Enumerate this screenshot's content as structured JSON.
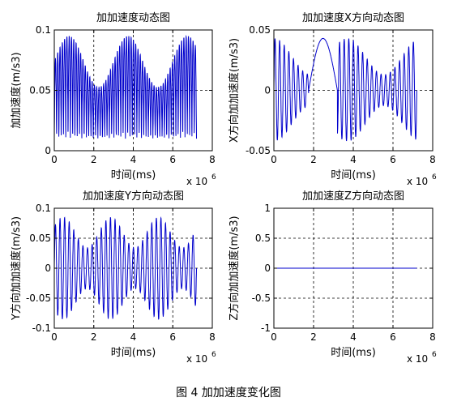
{
  "figure_caption": "图 4  加加速度变化图",
  "chart_data": [
    {
      "type": "line",
      "title": "加加速度动态图",
      "xlabel": "时间(ms)",
      "ylabel": "加加速度(m/s3)",
      "x_multiplier": "x 10",
      "x_multiplier_exp": "6",
      "xlim": [
        0,
        8
      ],
      "ylim": [
        0,
        0.1
      ],
      "xticks": [
        "0",
        "2",
        "4",
        "6",
        "8"
      ],
      "yticks": [
        "0",
        "0.05",
        "0.1"
      ],
      "grid": true,
      "pattern": "magnitude",
      "x_end": 7.2,
      "cycles": 31,
      "peak": 0.095,
      "trough": 0.01,
      "color": "#0000cc"
    },
    {
      "type": "line",
      "title": "加加速度X方向动态图",
      "xlabel": "时间(ms)",
      "ylabel": "X方向加加速度(m/s3)",
      "x_multiplier": "x 10",
      "x_multiplier_exp": "6",
      "xlim": [
        0,
        8
      ],
      "ylim": [
        -0.05,
        0.05
      ],
      "xticks": [
        "0",
        "2",
        "4",
        "6",
        "8"
      ],
      "yticks": [
        "-0.05",
        "0",
        "0.05"
      ],
      "grid": true,
      "pattern": "x-component",
      "x_end": 7.2,
      "cycles": 31,
      "peak": 0.043,
      "trough": -0.042,
      "color": "#0000cc"
    },
    {
      "type": "line",
      "title": "加加速度Y方向动态图",
      "xlabel": "时间(ms)",
      "ylabel": "Y方向加加速度(m/s3)",
      "x_multiplier": "x 10",
      "x_multiplier_exp": "6",
      "xlim": [
        0,
        8
      ],
      "ylim": [
        -0.1,
        0.1
      ],
      "xticks": [
        "0",
        "2",
        "4",
        "6",
        "8"
      ],
      "yticks": [
        "-0.1",
        "-0.05",
        "0",
        "0.05",
        "0.1"
      ],
      "grid": true,
      "pattern": "y-component",
      "x_end": 7.2,
      "cycles": 31,
      "peak": 0.085,
      "trough": -0.085,
      "color": "#0000cc"
    },
    {
      "type": "line",
      "title": "加加速度Z方向动态图",
      "xlabel": "时间(ms)",
      "ylabel": "Z方向加加速度(m/s3)",
      "x_multiplier": "x 10",
      "x_multiplier_exp": "6",
      "xlim": [
        0,
        8
      ],
      "ylim": [
        -1,
        1
      ],
      "xticks": [
        "0",
        "2",
        "4",
        "6",
        "8"
      ],
      "yticks": [
        "-1",
        "-0.5",
        "0",
        "0.5",
        "1"
      ],
      "grid": true,
      "pattern": "zero",
      "x_end": 7.2,
      "color": "#0000cc"
    }
  ]
}
